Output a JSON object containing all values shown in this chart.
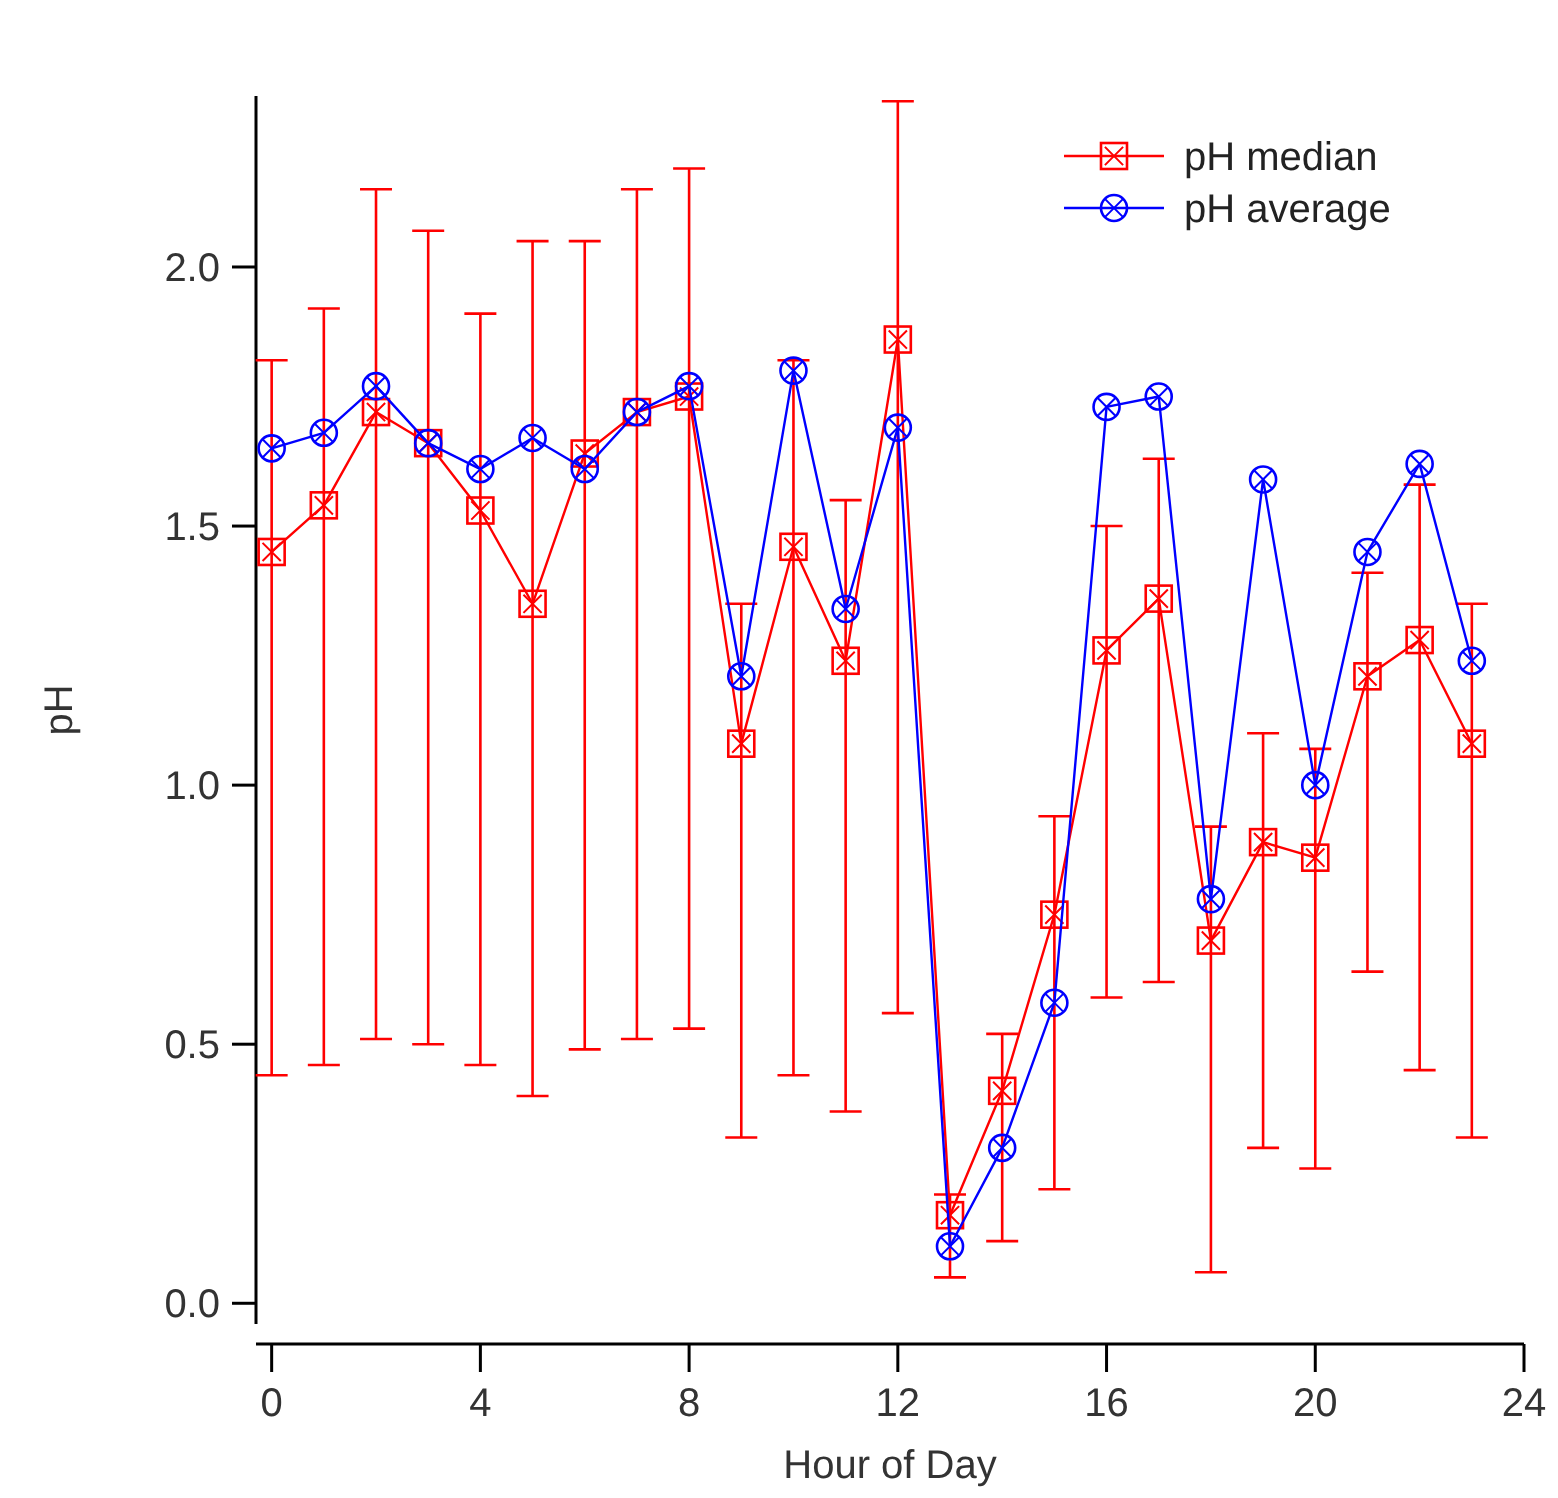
{
  "chart_data": {
    "type": "line",
    "xlabel": "Hour of Day",
    "ylabel": "pH",
    "x": [
      0,
      1,
      2,
      3,
      4,
      5,
      6,
      7,
      8,
      9,
      10,
      11,
      12,
      13,
      14,
      15,
      16,
      17,
      18,
      19,
      20,
      21,
      22,
      23
    ],
    "xlim": [
      -0.3,
      24
    ],
    "xticks": [
      0,
      4,
      8,
      12,
      16,
      20,
      24
    ],
    "ylim": [
      -0.04,
      2.33
    ],
    "yticks": [
      {
        "value": 0,
        "label": "0.0"
      },
      {
        "value": 0.5,
        "label": "0.5"
      },
      {
        "value": 1,
        "label": "1.0"
      },
      {
        "value": 1.5,
        "label": "1.5"
      },
      {
        "value": 2,
        "label": "2.0"
      }
    ],
    "grid": false,
    "legend": "top right",
    "series": [
      {
        "name": "pH median",
        "color": "#ff0000",
        "marker": "square",
        "values": [
          1.45,
          1.54,
          1.72,
          1.66,
          1.53,
          1.35,
          1.64,
          1.72,
          1.75,
          1.08,
          1.46,
          1.24,
          1.86,
          0.17,
          0.41,
          0.75,
          1.26,
          1.36,
          0.7,
          0.89,
          0.86,
          1.21,
          1.28,
          1.08
        ],
        "errors": [
          [
            0.44,
            1.82
          ],
          [
            0.46,
            1.92
          ],
          [
            0.51,
            2.15
          ],
          [
            0.5,
            2.07
          ],
          [
            0.46,
            1.91
          ],
          [
            0.4,
            2.05
          ],
          [
            0.49,
            2.05
          ],
          [
            0.51,
            2.15
          ],
          [
            0.53,
            2.19
          ],
          [
            0.32,
            1.35
          ],
          [
            0.44,
            1.82
          ],
          [
            0.37,
            1.55
          ],
          [
            0.56,
            2.32
          ],
          [
            0.05,
            0.21
          ],
          [
            0.12,
            0.52
          ],
          [
            0.22,
            0.94
          ],
          [
            0.59,
            1.5
          ],
          [
            0.62,
            1.63
          ],
          [
            0.06,
            0.92
          ],
          [
            0.3,
            1.1
          ],
          [
            0.26,
            1.07
          ],
          [
            0.64,
            1.41
          ],
          [
            0.45,
            1.58
          ],
          [
            0.32,
            1.35
          ]
        ]
      },
      {
        "name": "pH average",
        "color": "#0000ff",
        "marker": "circle",
        "values": [
          1.65,
          1.68,
          1.77,
          1.66,
          1.61,
          1.67,
          1.61,
          1.72,
          1.77,
          1.21,
          1.8,
          1.34,
          1.69,
          0.11,
          0.3,
          0.58,
          1.73,
          1.75,
          0.78,
          1.59,
          1.0,
          1.45,
          1.62,
          1.24
        ]
      }
    ]
  }
}
